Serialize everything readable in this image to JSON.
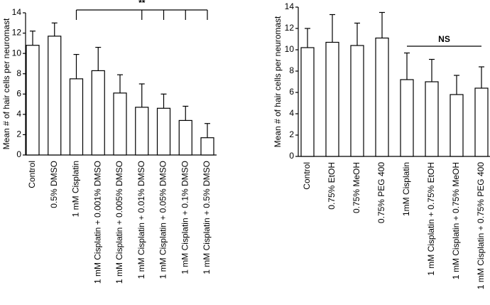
{
  "chart_data": [
    {
      "type": "bar",
      "y_label": "Mean # of hair cells per neuromast",
      "annotation": "**",
      "color": "#ffffff",
      "categories": [
        "Control",
        "0.5% DMSO",
        "1 mM Cisplatin",
        "1 mM Cisplatin + 0.001% DMSO",
        "1 mM Cisplatin + 0.005% DMSO",
        "1 mM Cisplatin + 0.01% DMSO",
        "1 mM Cisplatin + 0.05% DMSO",
        "1 mM Cisplatin + 0.1% DMSO",
        "1 mM Cisplatin + 0.5% DMSO"
      ],
      "values": [
        10.8,
        11.7,
        7.5,
        8.3,
        6.1,
        4.7,
        4.6,
        3.4,
        1.7
      ],
      "errors": [
        1.4,
        1.3,
        2.4,
        2.3,
        1.8,
        2.3,
        1.4,
        1.4,
        1.4
      ],
      "ylim": [
        0,
        14
      ],
      "yticks": [
        0,
        2,
        4,
        6,
        8,
        10,
        12,
        14
      ]
    },
    {
      "type": "bar",
      "y_label": "Mean # of hair cells per neuromast",
      "annotation": "NS",
      "color": "#ffffff",
      "categories": [
        "Control",
        "0.75% EtOH",
        "0.75% MeOH",
        "0.75% PEG 400",
        "1mM Cisplatin",
        "1 mM Cisplatin + 0.75% EtOH",
        "1 mM Cisplatin + 0.75% MeOH",
        "1 mM Cisplatin + 0.75% PEG 400"
      ],
      "values": [
        10.2,
        10.7,
        10.4,
        11.1,
        7.2,
        7.0,
        5.8,
        6.4
      ],
      "errors": [
        1.8,
        2.6,
        2.1,
        2.4,
        2.5,
        2.1,
        1.8,
        2.0
      ],
      "ylim": [
        0,
        14
      ],
      "yticks": [
        0,
        2,
        4,
        6,
        8,
        10,
        12,
        14
      ]
    }
  ]
}
